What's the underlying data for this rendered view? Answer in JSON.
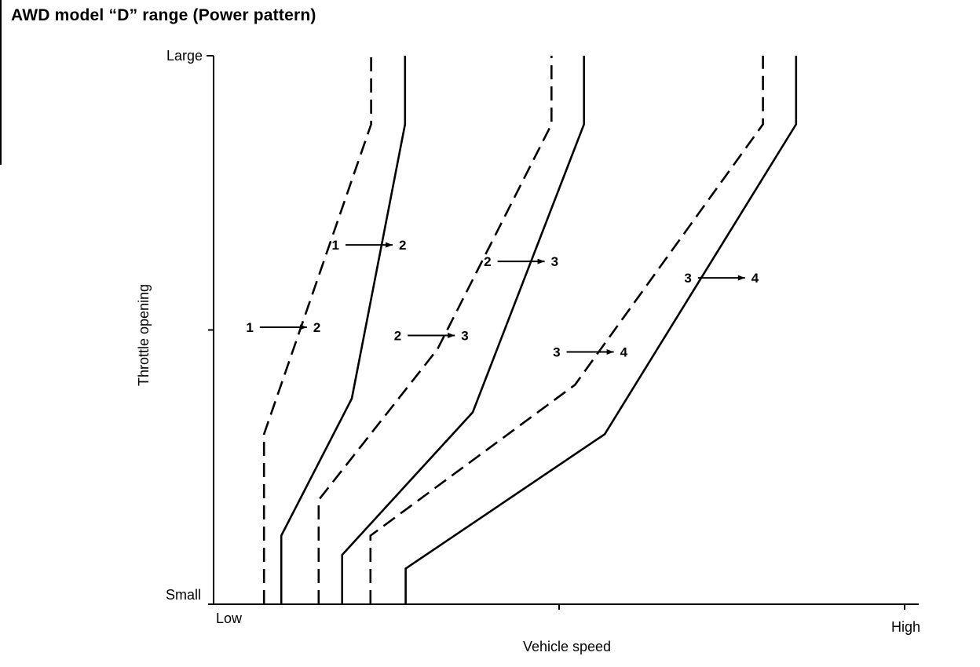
{
  "title": "AWD model “D” range (Power pattern)",
  "chart_data": {
    "type": "line",
    "title": "AWD model “D” range (Power pattern)",
    "xlabel": "Vehicle speed",
    "ylabel": "Throttle opening",
    "x_tick_labels": {
      "low": "Low",
      "high": "High"
    },
    "y_tick_labels": {
      "small": "Small",
      "large": "Large"
    },
    "xlim": [
      0,
      100
    ],
    "ylim": [
      0,
      100
    ],
    "grid": false,
    "legend": "none",
    "line_styles": {
      "dashed": "downshift",
      "solid": "upshift"
    },
    "series": [
      {
        "style": "dashed",
        "points": [
          [
            7.3,
            0
          ],
          [
            7.3,
            31
          ],
          [
            22.8,
            87.5
          ],
          [
            22.8,
            100
          ]
        ]
      },
      {
        "style": "solid",
        "points": [
          [
            9.8,
            0
          ],
          [
            9.8,
            12.5
          ],
          [
            20,
            37.5
          ],
          [
            27.7,
            87.5
          ],
          [
            27.7,
            100
          ]
        ]
      },
      {
        "style": "dashed",
        "points": [
          [
            15.2,
            0
          ],
          [
            15.2,
            19
          ],
          [
            32.4,
            46.5
          ],
          [
            48.9,
            87.5
          ],
          [
            48.9,
            100
          ]
        ]
      },
      {
        "style": "solid",
        "points": [
          [
            18.6,
            0
          ],
          [
            18.6,
            9
          ],
          [
            37.5,
            35
          ],
          [
            53.6,
            87.5
          ],
          [
            53.6,
            100
          ]
        ]
      },
      {
        "style": "dashed",
        "points": [
          [
            22.7,
            0
          ],
          [
            22.7,
            12.5
          ],
          [
            52.3,
            40
          ],
          [
            79.5,
            87.5
          ],
          [
            79.5,
            100
          ]
        ]
      },
      {
        "style": "solid",
        "points": [
          [
            27.8,
            0
          ],
          [
            27.8,
            6.5
          ],
          [
            56.6,
            31
          ],
          [
            84.3,
            87.5
          ],
          [
            84.3,
            100
          ]
        ]
      }
    ],
    "annotations": [
      {
        "from": "1",
        "to": "2",
        "x": 10.1,
        "y": 50.5
      },
      {
        "from": "1",
        "to": "2",
        "x": 22.5,
        "y": 65.5
      },
      {
        "from": "2",
        "to": "3",
        "x": 31.5,
        "y": 49
      },
      {
        "from": "2",
        "to": "3",
        "x": 44.5,
        "y": 62.5
      },
      {
        "from": "3",
        "to": "4",
        "x": 54.5,
        "y": 46
      },
      {
        "from": "3",
        "to": "4",
        "x": 73.5,
        "y": 59.5
      }
    ]
  }
}
